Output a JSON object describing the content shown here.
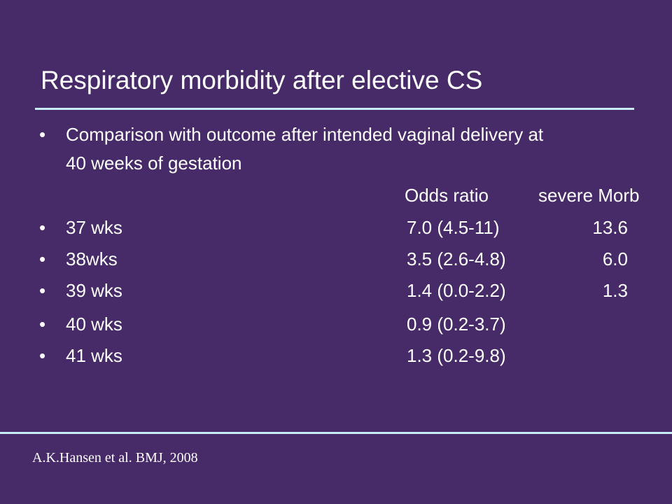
{
  "slide": {
    "title": "Respiratory morbidity after elective CS",
    "bullet_char": "•",
    "intro": {
      "line1": "Comparison with outcome after intended vaginal delivery at",
      "line2": "40 weeks of gestation"
    },
    "table": {
      "headers": {
        "odds_ratio": "Odds ratio",
        "severe_morb": "severe Morb"
      },
      "rows": [
        {
          "label": "37 wks",
          "odds_ratio": "7.0 (4.5-11)",
          "severe_morb": "13.6"
        },
        {
          "label": "38wks",
          "odds_ratio": "3.5 (2.6-4.8)",
          "severe_morb": "6.0"
        },
        {
          "label": "39 wks",
          "odds_ratio": "1.4 (0.0-2.2)",
          "severe_morb": "1.3"
        },
        {
          "label": "40 wks",
          "odds_ratio": "0.9 (0.2-3.7)",
          "severe_morb": ""
        },
        {
          "label": "41 wks",
          "odds_ratio": "1.3 (0.2-9.8)",
          "severe_morb": ""
        }
      ]
    },
    "citation": "A.K.Hansen et al. BMJ, 2008"
  },
  "colors": {
    "background": "#472a68",
    "text": "#ffffff",
    "rule": "#c9ecf4"
  }
}
